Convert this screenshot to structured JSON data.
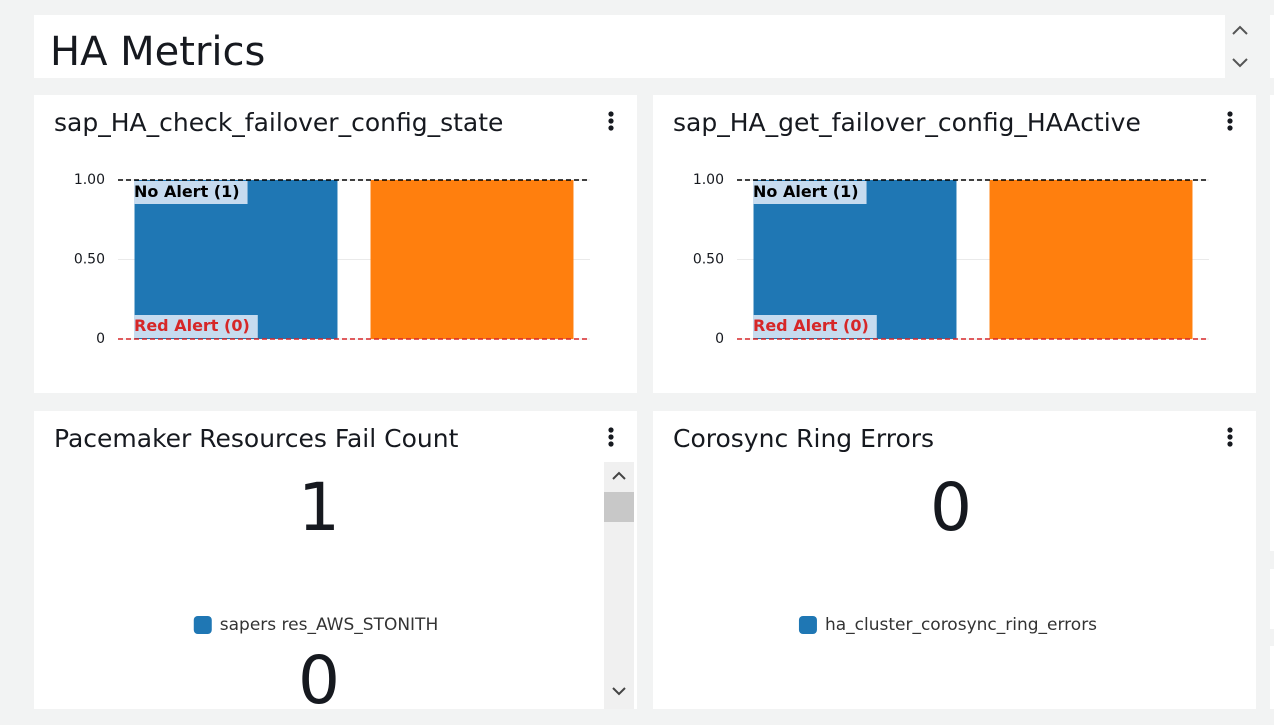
{
  "header": {
    "title": "HA Metrics"
  },
  "chart_data": [
    {
      "type": "bar",
      "title": "sap_HA_check_failover_config_state",
      "categories": [
        null,
        null
      ],
      "values": [
        1,
        1
      ],
      "colors": [
        "#1f77b4",
        "#ff7f0e"
      ],
      "ylim": [
        0,
        1
      ],
      "yticks": [
        0,
        {
          "value": 0.5,
          "label": "0.50"
        },
        {
          "value": 1,
          "label": "1.00"
        }
      ],
      "grid": true,
      "annotations": [
        {
          "label": "No Alert (1)",
          "value": 1,
          "color": "#000000"
        },
        {
          "label": "Red Alert (0)",
          "value": 0,
          "color": "#d62728"
        }
      ]
    },
    {
      "type": "bar",
      "title": "sap_HA_get_failover_config_HAActive",
      "categories": [
        null,
        null
      ],
      "values": [
        1,
        1
      ],
      "colors": [
        "#1f77b4",
        "#ff7f0e"
      ],
      "ylim": [
        0,
        1
      ],
      "yticks": [
        0,
        {
          "value": 0.5,
          "label": "0.50"
        },
        {
          "value": 1,
          "label": "1.00"
        }
      ],
      "grid": true,
      "annotations": [
        {
          "label": "No Alert (1)",
          "value": 1,
          "color": "#000000"
        },
        {
          "label": "Red Alert (0)",
          "value": 0,
          "color": "#d62728"
        }
      ]
    }
  ],
  "number_widgets": [
    {
      "title": "Pacemaker Resources Fail Count",
      "items": [
        {
          "value": 1,
          "label": "sapers res_AWS_STONITH",
          "color": "#1f77b4"
        },
        {
          "value": 0
        }
      ]
    },
    {
      "title": "Corosync Ring Errors",
      "items": [
        {
          "value": 0,
          "label": "ha_cluster_corosync_ring_errors",
          "color": "#1f77b4"
        }
      ]
    }
  ]
}
